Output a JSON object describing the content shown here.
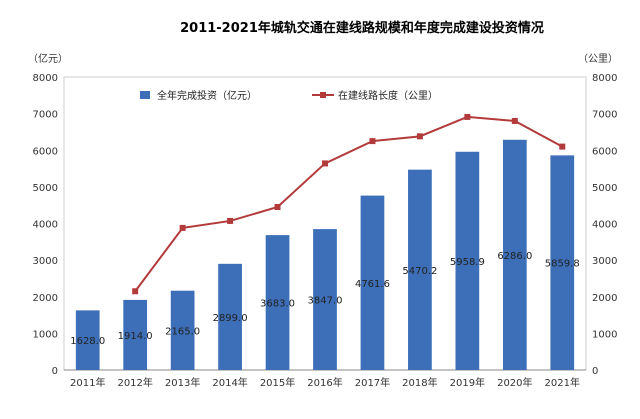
{
  "chart_data": {
    "type": "bar",
    "title": "2011-2021年城轨交通在建线路规模和年度完成建设投资情况",
    "categories": [
      "2011年",
      "2012年",
      "2013年",
      "2014年",
      "2015年",
      "2016年",
      "2017年",
      "2018年",
      "2019年",
      "2020年",
      "2021年"
    ],
    "series": [
      {
        "name": "全年完成投资（亿元）",
        "type": "bar",
        "axis": "left",
        "color": "#3d6fb8",
        "values": [
          1628.0,
          1914.0,
          2165.0,
          2899.0,
          3683.0,
          3847.0,
          4761.6,
          5470.2,
          5958.9,
          6286.0,
          5859.8
        ],
        "labels": [
          "1628.0",
          "1914.0",
          "2165.0",
          "2899.0",
          "3683.0",
          "3847.0",
          "4761.6",
          "5470.2",
          "5958.9",
          "6286.0",
          "5859.8"
        ]
      },
      {
        "name": "在建线路长度（公里）",
        "type": "line",
        "axis": "right",
        "color": "#b33a3a",
        "values": [
          null,
          2150,
          3880,
          4070,
          4450,
          5640,
          6250,
          6380,
          6910,
          6800,
          6100
        ]
      }
    ],
    "left_axis": {
      "unit": "（亿元）",
      "ylim": [
        0,
        8000
      ],
      "ticks": [
        0,
        1000,
        2000,
        3000,
        4000,
        5000,
        6000,
        7000,
        8000
      ]
    },
    "right_axis": {
      "unit": "（公里）",
      "ylim": [
        0,
        8000
      ],
      "ticks": [
        0,
        1000,
        2000,
        3000,
        4000,
        5000,
        6000,
        7000,
        8000
      ]
    },
    "grid": false,
    "legend_position": "top-left"
  }
}
